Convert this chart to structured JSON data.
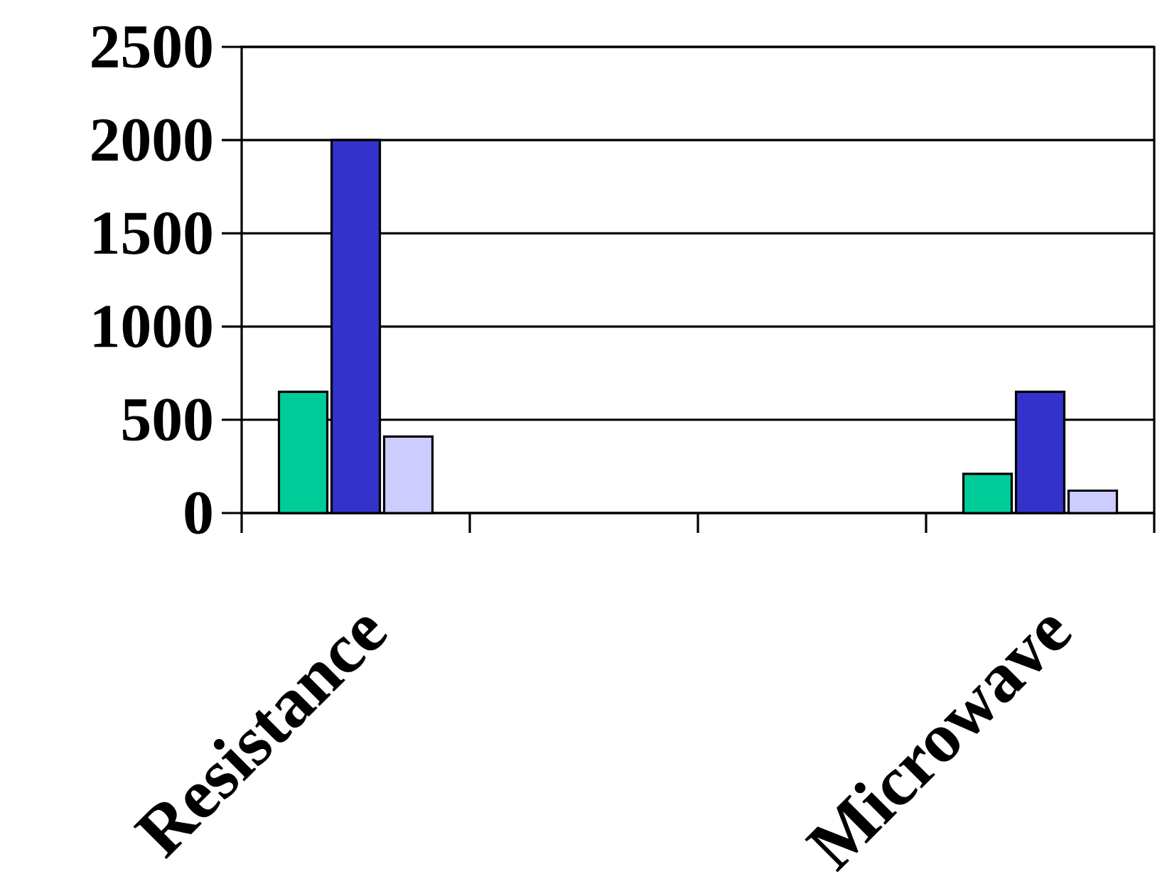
{
  "chart_data": {
    "type": "bar",
    "categories": [
      "Resistance",
      null,
      null,
      "Microwave"
    ],
    "series": [
      {
        "color": "#00cc99",
        "values": [
          650,
          null,
          null,
          210
        ]
      },
      {
        "color": "#3333cc",
        "values": [
          2000,
          null,
          null,
          650
        ]
      },
      {
        "color": "#ccccff",
        "values": [
          410,
          null,
          null,
          120
        ]
      }
    ],
    "ylim": [
      0,
      2500
    ],
    "yticks": [
      0,
      500,
      1000,
      1500,
      2000,
      2500
    ],
    "grid": "y"
  }
}
